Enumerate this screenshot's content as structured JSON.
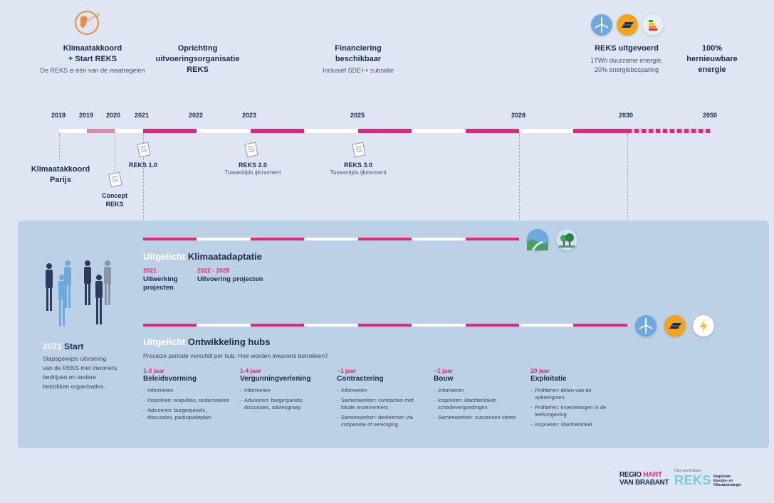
{
  "top_events": [
    {
      "title": "Klimaatakkoord\n+ Start REKS",
      "sub": "De REKS is één van de maatregelen"
    },
    {
      "title": "Oprichting\nuitvoeringsorganisatie\nREKS",
      "sub": ""
    },
    {
      "title": "Financiering\nbeschikbaar",
      "sub": "Inclusief SDE++ subsidie"
    },
    {
      "title": "REKS uitgevoerd",
      "sub": "1TWh duurzame energie,\n20% energiebesparing"
    },
    {
      "title": "100%\nhernieuwbare\nenergie",
      "sub": ""
    }
  ],
  "stamp_text": "klimaat-akkoord",
  "years": [
    "2018",
    "2019",
    "2020",
    "2021",
    "2022",
    "2023",
    "2025",
    "2028",
    "2030",
    "2050"
  ],
  "bottom_events": [
    {
      "title": "Klimaatakkoord\nParijs",
      "sub": ""
    },
    {
      "title": "Concept\nREKS",
      "sub": ""
    },
    {
      "title": "REKS 1.0",
      "sub": ""
    },
    {
      "title": "REKS 2.0",
      "sub": "Tussentijds ijkmoment"
    },
    {
      "title": "REKS 3.0",
      "sub": "Tussentijds ijkmoment"
    }
  ],
  "start": {
    "year": "2021",
    "label": "Start",
    "text": "Stapsgewijze uitvoering\nvan de REKS met inwoners,\nbedrijven en andere\nbetrokken organisaties."
  },
  "adaptatie": {
    "prefix": "Uitgelicht",
    "title": "Klimaatadaptatie",
    "items": [
      {
        "period": "2021",
        "label": "Uitwerking\nprojecten"
      },
      {
        "period": "2022 - 2028",
        "label": "Uitvoering projecten"
      }
    ]
  },
  "hubs": {
    "prefix": "Uitgelicht",
    "title": "Ontwikkeling hubs",
    "subtitle": "Precieze periode verschilt per hub. Hoe worden inwoners betrokken?",
    "phases": [
      {
        "duration": "1-3 jaar",
        "title": "Beleidsvorming",
        "bullets": [
          "Informeren",
          "Inspreken: enquêtes, onderzoeken",
          "Adviseren: burgerpanels, discussies, participatieplan"
        ]
      },
      {
        "duration": "1-4 jaar",
        "title": "Vergunningverlening",
        "bullets": [
          "Informeren",
          "Adviseren: burgerpanels, discussies, adviesgroep"
        ]
      },
      {
        "duration": "~1 jaar",
        "title": "Contractering",
        "bullets": [
          "Informeren",
          "Samenwerken: contracten met lokale ondernemers",
          "Samenwerken: deelnemen via coöperatie of vereniging"
        ]
      },
      {
        "duration": "~1 jaar",
        "title": "Bouw",
        "bullets": [
          "Informeren",
          "Inspreken: klachtenloket, schadevergoedingen",
          "Samenwerken: successen vieren"
        ]
      },
      {
        "duration": "20 jaar",
        "title": "Exploitatie",
        "bullets": [
          "Profiteren: delen van de opbrengsten",
          "Profiteren: Investeringen in de leefomgeving",
          "Inspreken: klachtenloket"
        ]
      }
    ]
  },
  "logos": {
    "regio_line1a": "REGIO",
    "regio_line1b": "HART",
    "regio_line2": "VAN BRABANT",
    "reks_small": "Hart van Brabant",
    "reks_big": "REKS",
    "reks_desc": "Regionale\nEnergie- en\nKlimaatstrategie"
  },
  "colors": {
    "pink": "#e0287a",
    "navy": "#1f2a4a",
    "light_pink": "#d98ab0",
    "panel": "#bcd0e6"
  },
  "icons": [
    "wind-turbine-icon",
    "solar-panel-icon",
    "energy-label-icon",
    "river-landscape-icon",
    "trees-icon",
    "lightning-icon",
    "people-group-icon",
    "document-icon",
    "stamp-icon"
  ]
}
